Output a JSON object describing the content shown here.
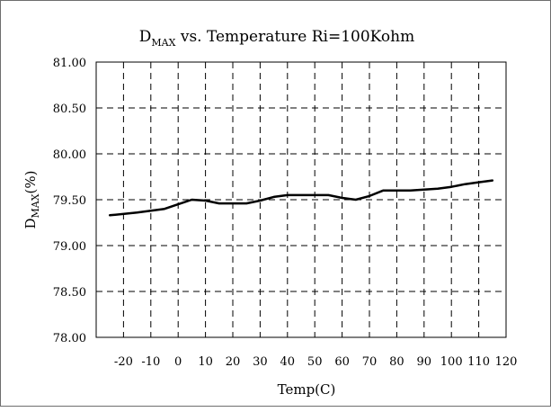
{
  "chart_data": {
    "type": "line",
    "title": {
      "main": "D",
      "sub": "MAX",
      "rest": " vs. Temperature Ri=100Kohm"
    },
    "xlabel": "Temp(C)",
    "ylabel": {
      "main": "D",
      "sub": "MAX",
      "rest": "(%)"
    },
    "xlim": [
      -30,
      120
    ],
    "ylim": [
      78.0,
      81.0
    ],
    "xticks": [
      -20,
      -10,
      0,
      10,
      20,
      30,
      40,
      50,
      60,
      70,
      80,
      90,
      100,
      110,
      120
    ],
    "xtick_labels": [
      "-20",
      "-10",
      "0",
      "10",
      "20",
      "30",
      "40",
      "50",
      "60",
      "70",
      "80",
      "90",
      "100",
      "110",
      "120"
    ],
    "yticks": [
      78.0,
      78.5,
      79.0,
      79.5,
      80.0,
      80.5,
      81.0
    ],
    "ytick_labels": [
      "78.00",
      "78.50",
      "79.00",
      "79.50",
      "80.00",
      "80.50",
      "81.00"
    ],
    "grid": true,
    "grid_style": "dashed",
    "line_color": "#000000",
    "series": [
      {
        "x": [
          -25,
          -15,
          -5,
          0,
          5,
          10,
          15,
          20,
          25,
          30,
          35,
          40,
          45,
          50,
          55,
          60,
          65,
          70,
          75,
          80,
          85,
          90,
          95,
          100,
          105,
          110,
          115
        ],
        "y": [
          79.33,
          79.36,
          79.4,
          79.45,
          79.5,
          79.49,
          79.46,
          79.46,
          79.46,
          79.49,
          79.53,
          79.55,
          79.55,
          79.55,
          79.55,
          79.52,
          79.5,
          79.54,
          79.6,
          79.6,
          79.6,
          79.61,
          79.62,
          79.64,
          79.67,
          79.69,
          79.71
        ]
      }
    ]
  }
}
